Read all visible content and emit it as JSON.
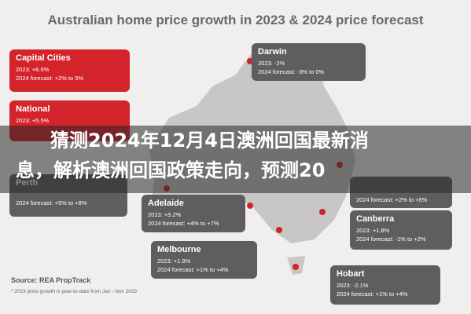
{
  "title": "Australian home price growth in 2023 & 2024 price forecast",
  "callouts": [
    {
      "name": "Capital Cities",
      "year_2023": "2023: +6.6%",
      "forecast_2024": "2024 forecast: +2% to 5%"
    },
    {
      "name": "National",
      "year_2023": "2023: +5.5%"
    },
    {
      "name": "Perth",
      "forecast_2024": "2024 forecast: +5% to +8%"
    },
    {
      "name": "Darwin",
      "year_2023": "2023: -2%",
      "forecast_2024": "2024 forecast: -3% to 0%"
    },
    {
      "name": "Adelaide",
      "year_2023": "2023: +9.2%",
      "forecast_2024": "2024 forecast: +4% to +7%"
    },
    {
      "name": "Melbourne",
      "year_2023": "2023: +1.9%",
      "forecast_2024": "2024 forecast: +1% to +4%"
    },
    {
      "forecast_2024": "2024 forecast: +2% to +5%"
    },
    {
      "name": "Canberra",
      "year_2023": "2023: +1.8%",
      "forecast_2024": "2024 forecast: -1% to +2%"
    },
    {
      "name": "Hobart",
      "year_2023": "2023: -2.1%",
      "forecast_2024": "2024 forecast: +1% to +4%"
    }
  ],
  "source": "Source: REA PropTrack",
  "footnote": "* 2023 price growth is year-to-date from Jan - Nov 2023",
  "banner": {
    "lines": [
      "猜测2024年12月4日澳洲回国最新消",
      "息，解析澳洲回国政策走向，预测20"
    ]
  }
}
